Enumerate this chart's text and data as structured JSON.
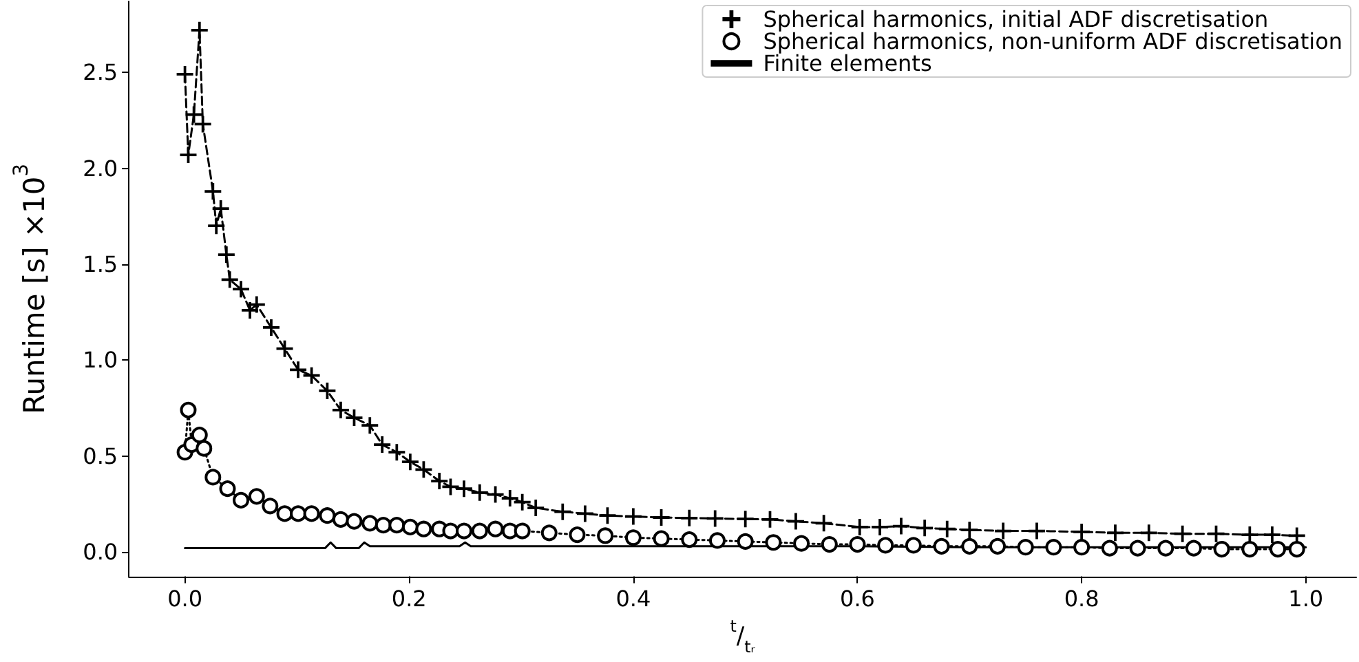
{
  "chart_data": {
    "type": "line",
    "xlabel": "$^{t}$/$_{tᵣ}$",
    "ylabel": "Runtime [s] ×10$^{3}$",
    "xlim": [
      -0.05,
      1.045
    ],
    "ylim": [
      -0.127,
      2.87
    ],
    "xticks": [
      {
        "value": 0,
        "label": "0.0"
      },
      {
        "value": 0.2,
        "label": "0.2"
      },
      {
        "value": 0.4,
        "label": "0.4"
      },
      {
        "value": 0.6,
        "label": "0.6"
      },
      {
        "value": 0.8,
        "label": "0.8"
      },
      {
        "value": 1,
        "label": "1.0"
      }
    ],
    "yticks": [
      {
        "value": 0,
        "label": "0.0"
      },
      {
        "value": 0.5,
        "label": "0.5"
      },
      {
        "value": 1,
        "label": "1.0"
      },
      {
        "value": 1.5,
        "label": "1.5"
      },
      {
        "value": 2,
        "label": "2.0"
      },
      {
        "value": 2.5,
        "label": "2.5"
      }
    ],
    "grid": false,
    "legend": "top right",
    "series": [
      {
        "name": "Spherical harmonics, initial ADF discretisation",
        "color": "#000000",
        "marker": "cross",
        "line_style": "dashed",
        "x": [
          0,
          0.003,
          0.008,
          0.013,
          0.016,
          0.025,
          0.028,
          0.032,
          0.037,
          0.04,
          0.05,
          0.058,
          0.064,
          0.077,
          0.089,
          0.101,
          0.113,
          0.127,
          0.139,
          0.151,
          0.165,
          0.176,
          0.189,
          0.201,
          0.213,
          0.227,
          0.237,
          0.249,
          0.263,
          0.277,
          0.29,
          0.301,
          0.313,
          0.337,
          0.357,
          0.377,
          0.4,
          0.425,
          0.45,
          0.473,
          0.5,
          0.522,
          0.545,
          0.57,
          0.602,
          0.62,
          0.639,
          0.66,
          0.68,
          0.7,
          0.73,
          0.76,
          0.8,
          0.83,
          0.86,
          0.89,
          0.92,
          0.95,
          0.97,
          0.992
        ],
        "values": [
          2.49,
          2.07,
          2.28,
          2.72,
          2.23,
          1.88,
          1.7,
          1.79,
          1.55,
          1.42,
          1.37,
          1.26,
          1.29,
          1.17,
          1.06,
          0.95,
          0.92,
          0.84,
          0.74,
          0.7,
          0.66,
          0.56,
          0.52,
          0.47,
          0.43,
          0.37,
          0.34,
          0.33,
          0.31,
          0.3,
          0.28,
          0.26,
          0.23,
          0.21,
          0.2,
          0.19,
          0.185,
          0.18,
          0.177,
          0.175,
          0.172,
          0.17,
          0.16,
          0.15,
          0.13,
          0.13,
          0.135,
          0.125,
          0.12,
          0.115,
          0.11,
          0.11,
          0.105,
          0.1,
          0.1,
          0.095,
          0.095,
          0.09,
          0.09,
          0.085
        ]
      },
      {
        "name": "Spherical harmonics, non-uniform ADF discretisation",
        "color": "#000000",
        "marker": "circle",
        "line_style": "dotted",
        "x": [
          0,
          0.003,
          0.006,
          0.013,
          0.017,
          0.025,
          0.038,
          0.05,
          0.064,
          0.076,
          0.089,
          0.101,
          0.113,
          0.127,
          0.139,
          0.151,
          0.165,
          0.177,
          0.189,
          0.201,
          0.213,
          0.227,
          0.237,
          0.249,
          0.263,
          0.277,
          0.29,
          0.301,
          0.325,
          0.35,
          0.375,
          0.4,
          0.425,
          0.45,
          0.475,
          0.5,
          0.525,
          0.55,
          0.575,
          0.6,
          0.625,
          0.65,
          0.675,
          0.7,
          0.725,
          0.75,
          0.775,
          0.8,
          0.825,
          0.85,
          0.875,
          0.9,
          0.925,
          0.95,
          0.975,
          0.992
        ],
        "values": [
          0.52,
          0.74,
          0.56,
          0.61,
          0.54,
          0.39,
          0.33,
          0.27,
          0.29,
          0.24,
          0.2,
          0.2,
          0.2,
          0.19,
          0.17,
          0.16,
          0.15,
          0.14,
          0.14,
          0.13,
          0.12,
          0.12,
          0.11,
          0.11,
          0.11,
          0.12,
          0.11,
          0.11,
          0.1,
          0.09,
          0.085,
          0.075,
          0.07,
          0.065,
          0.06,
          0.055,
          0.05,
          0.045,
          0.04,
          0.04,
          0.035,
          0.035,
          0.03,
          0.03,
          0.03,
          0.025,
          0.025,
          0.025,
          0.02,
          0.02,
          0.02,
          0.02,
          0.015,
          0.015,
          0.015,
          0.015
        ]
      },
      {
        "name": "Finite elements",
        "color": "#000000",
        "marker": "none",
        "line_style": "solid",
        "x": [
          0,
          0.05,
          0.1,
          0.125,
          0.13,
          0.135,
          0.155,
          0.16,
          0.165,
          0.2,
          0.245,
          0.25,
          0.255,
          0.3,
          0.4,
          0.5,
          0.6,
          0.7,
          0.8,
          0.9,
          1.0
        ],
        "values": [
          0.02,
          0.02,
          0.02,
          0.02,
          0.05,
          0.02,
          0.02,
          0.05,
          0.03,
          0.03,
          0.03,
          0.05,
          0.03,
          0.03,
          0.03,
          0.03,
          0.03,
          0.025,
          0.025,
          0.025,
          0.025
        ]
      }
    ]
  }
}
